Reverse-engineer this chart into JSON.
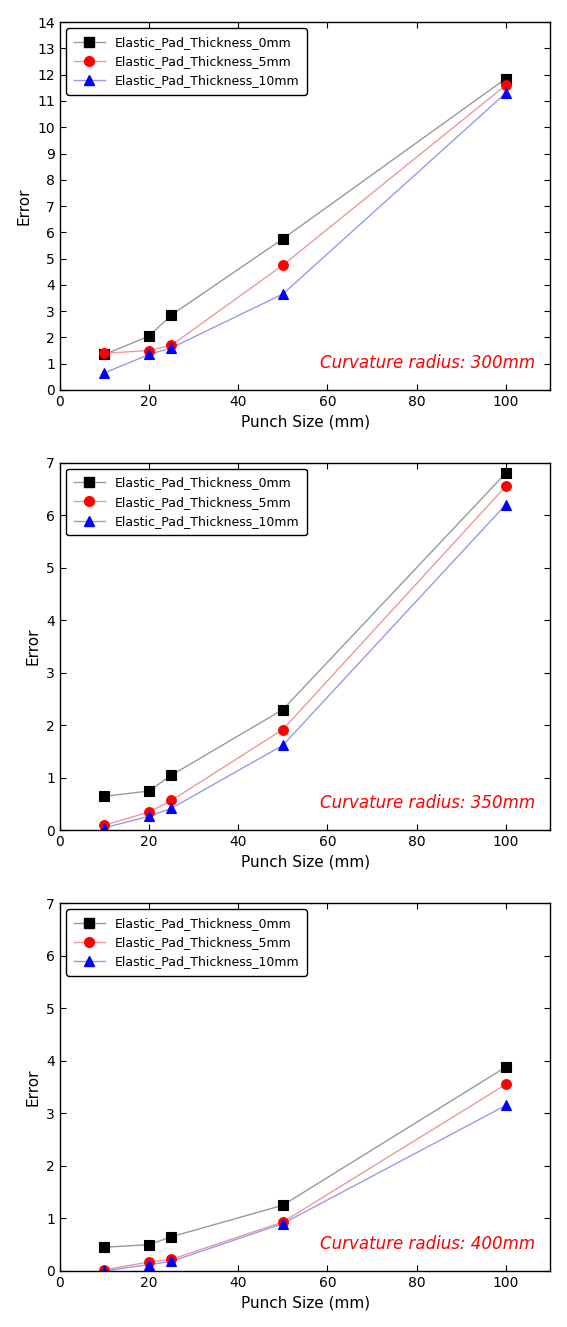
{
  "x": [
    10,
    20,
    25,
    50,
    100
  ],
  "plots": [
    {
      "title": "Curvature radius: 300mm",
      "ylim": [
        0,
        14
      ],
      "yticks": [
        0,
        1,
        2,
        3,
        4,
        5,
        6,
        7,
        8,
        9,
        10,
        11,
        12,
        13,
        14
      ],
      "series": [
        {
          "label": "Elastic_Pad_Thickness_0mm",
          "marker_color": "black",
          "line_color": "#999999",
          "marker": "s",
          "values": [
            1.35,
            2.05,
            2.85,
            5.75,
            11.85
          ]
        },
        {
          "label": "Elastic_Pad_Thickness_5mm",
          "marker_color": "red",
          "line_color": "#ee9999",
          "marker": "o",
          "values": [
            1.4,
            1.5,
            1.7,
            4.75,
            11.6
          ]
        },
        {
          "label": "Elastic_Pad_Thickness_10mm",
          "marker_color": "blue",
          "line_color": "#9999ee",
          "marker": "^",
          "values": [
            0.65,
            1.35,
            1.6,
            3.65,
            11.3
          ]
        }
      ]
    },
    {
      "title": "Curvature radius: 350mm",
      "ylim": [
        0,
        7
      ],
      "yticks": [
        0,
        1,
        2,
        3,
        4,
        5,
        6,
        7
      ],
      "series": [
        {
          "label": "Elastic_Pad_Thickness_0mm",
          "marker_color": "black",
          "line_color": "#999999",
          "marker": "s",
          "values": [
            0.65,
            0.75,
            1.05,
            2.3,
            6.8
          ]
        },
        {
          "label": "Elastic_Pad_Thickness_5mm",
          "marker_color": "red",
          "line_color": "#ee9999",
          "marker": "o",
          "values": [
            0.1,
            0.35,
            0.57,
            1.92,
            6.55
          ]
        },
        {
          "label": "Elastic_Pad_Thickness_10mm",
          "marker_color": "blue",
          "line_color": "#9999ee",
          "marker": "^",
          "values": [
            0.05,
            0.27,
            0.42,
            1.62,
            6.2
          ]
        }
      ]
    },
    {
      "title": "Curvature radius: 400mm",
      "ylim": [
        0,
        7
      ],
      "yticks": [
        0,
        1,
        2,
        3,
        4,
        5,
        6,
        7
      ],
      "series": [
        {
          "label": "Elastic_Pad_Thickness_0mm",
          "marker_color": "black",
          "line_color": "#999999",
          "marker": "s",
          "values": [
            0.45,
            0.5,
            0.65,
            1.25,
            3.88
          ]
        },
        {
          "label": "Elastic_Pad_Thickness_5mm",
          "marker_color": "red",
          "line_color": "#ee9999",
          "marker": "o",
          "values": [
            0.02,
            0.17,
            0.22,
            0.93,
            3.55
          ]
        },
        {
          "label": "Elastic_Pad_Thickness_10mm",
          "marker_color": "blue",
          "line_color": "#9999ee",
          "marker": "^",
          "values": [
            0.0,
            0.12,
            0.18,
            0.9,
            3.15
          ]
        }
      ]
    }
  ],
  "xlabel": "Punch Size (mm)",
  "ylabel": "Error",
  "xlim": [
    0,
    110
  ],
  "xticks": [
    0,
    20,
    40,
    60,
    80,
    100
  ],
  "legend_fontsize": 9,
  "axis_label_fontsize": 11,
  "tick_fontsize": 10,
  "annotation_color": "red",
  "annotation_fontsize": 12,
  "background_color": "white",
  "marker_size": 7,
  "line_width": 1.0
}
